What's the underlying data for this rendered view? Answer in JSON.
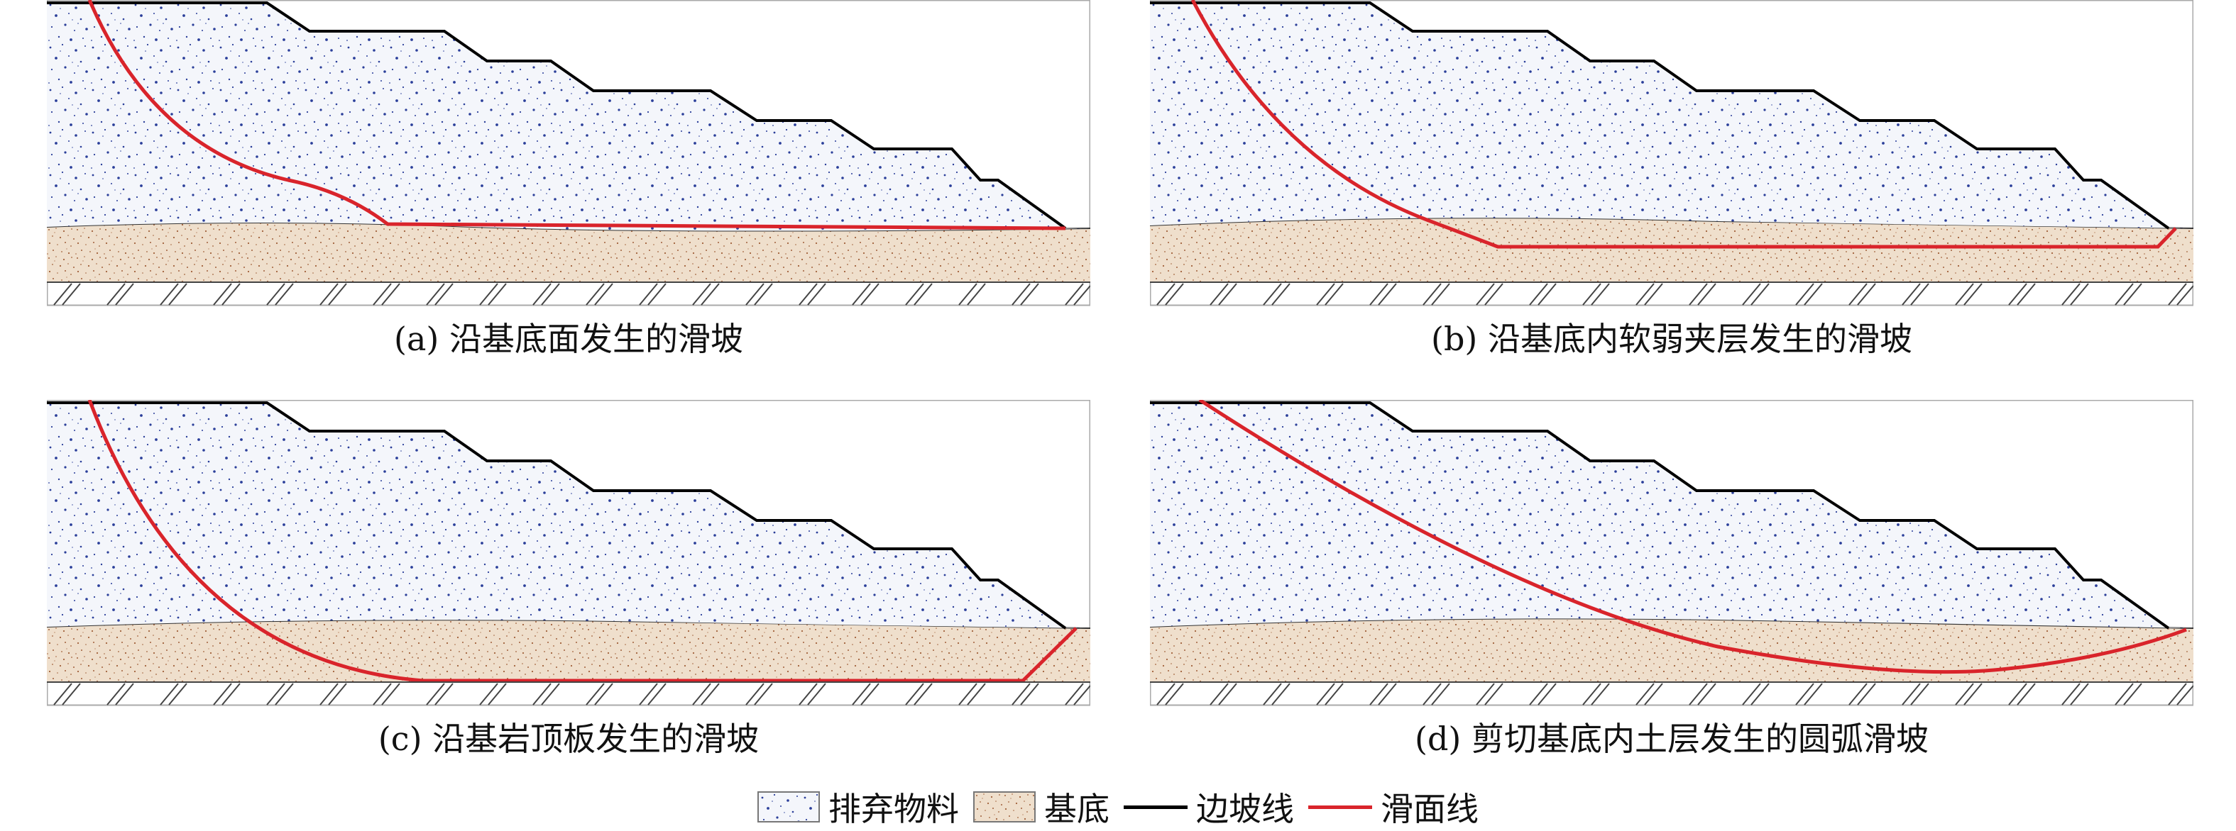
{
  "panels": [
    {
      "caption": "(a) 沿基底面发生的滑坡",
      "failure": "base-plane"
    },
    {
      "caption": "(b) 沿基底内软弱夹层发生的滑坡",
      "failure": "weak-interlayer"
    },
    {
      "caption": "(c) 沿基岩顶板发生的滑坡",
      "failure": "bedrock-roof"
    },
    {
      "caption": "(d) 剪切基底内土层发生的圆弧滑坡",
      "failure": "circular-arc"
    }
  ],
  "legend": {
    "waste": "排弃物料",
    "base": "基底",
    "slope_line": "边坡线",
    "slip_line": "滑面线"
  },
  "colors": {
    "waste_fill": "#f4f6fb",
    "waste_dot": "#2b3f9a",
    "base_fill": "#efdfcc",
    "base_dot": "#a0603a",
    "slope_line": "#000000",
    "slip_line": "#d9242b"
  }
}
